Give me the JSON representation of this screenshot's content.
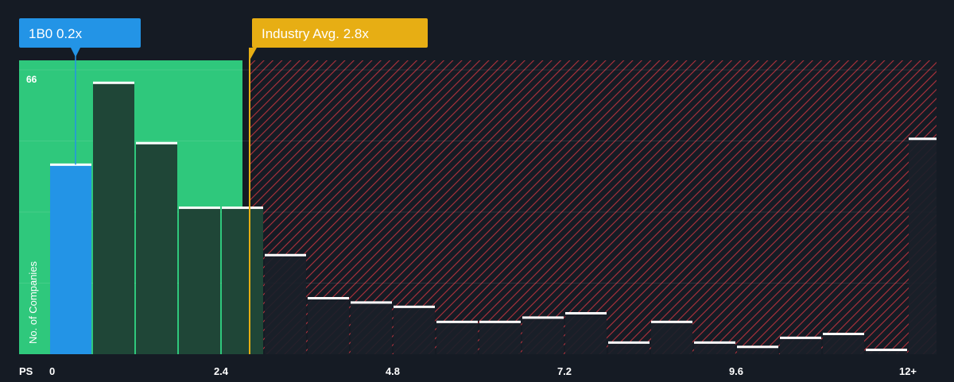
{
  "chart_data": {
    "type": "bar",
    "x_axis_prefix": "PS",
    "ylabel": "No. of Companies",
    "y_max_label": "66",
    "ylim": [
      0,
      66
    ],
    "x_range": [
      -0.3,
      12.3
    ],
    "x_ticks": [
      {
        "value": 0,
        "label": "0"
      },
      {
        "value": 2.4,
        "label": "2.4"
      },
      {
        "value": 4.8,
        "label": "4.8"
      },
      {
        "value": 7.2,
        "label": "7.2"
      },
      {
        "value": 9.6,
        "label": "9.6"
      },
      {
        "value": 12,
        "label": "12+"
      }
    ],
    "bins": [
      {
        "start": 0.0,
        "end": 0.6,
        "value": 44
      },
      {
        "start": 0.6,
        "end": 1.2,
        "value": 63
      },
      {
        "start": 1.2,
        "end": 1.8,
        "value": 49
      },
      {
        "start": 1.8,
        "end": 2.4,
        "value": 34
      },
      {
        "start": 2.4,
        "end": 3.0,
        "value": 34
      },
      {
        "start": 3.0,
        "end": 3.6,
        "value": 23
      },
      {
        "start": 3.6,
        "end": 4.2,
        "value": 13
      },
      {
        "start": 4.2,
        "end": 4.8,
        "value": 12
      },
      {
        "start": 4.8,
        "end": 5.4,
        "value": 11
      },
      {
        "start": 5.4,
        "end": 6.0,
        "value": 7.5
      },
      {
        "start": 6.0,
        "end": 6.6,
        "value": 7.5
      },
      {
        "start": 6.6,
        "end": 7.2,
        "value": 8.5
      },
      {
        "start": 7.2,
        "end": 7.8,
        "value": 9.5
      },
      {
        "start": 7.8,
        "end": 8.4,
        "value": 2.7
      },
      {
        "start": 8.4,
        "end": 9.0,
        "value": 7.5
      },
      {
        "start": 9.0,
        "end": 9.6,
        "value": 2.7
      },
      {
        "start": 9.6,
        "end": 10.2,
        "value": 1.7
      },
      {
        "start": 10.2,
        "end": 10.8,
        "value": 3.8
      },
      {
        "start": 10.8,
        "end": 11.4,
        "value": 4.7
      },
      {
        "start": 11.4,
        "end": 12.0,
        "value": 1
      },
      {
        "start": 12.0,
        "end": 12.6,
        "value": 50
      }
    ],
    "highlight_bin": 0,
    "company": {
      "label": "1B0 0.2x",
      "value": 0.2
    },
    "industry_avg": {
      "label": "Industry Avg. 2.8x",
      "value": 2.8
    },
    "fair_zone_end": 2.7
  },
  "colors": {
    "background": "#151b24",
    "fair_zone": "#2fc87c",
    "company_bar": "#2394e6",
    "bar_dark": "#1f4637",
    "bar_over": "#1a1f29",
    "hatch": "#c2343f",
    "industry": "#e7ae14",
    "bar_top": "#ffffff"
  }
}
